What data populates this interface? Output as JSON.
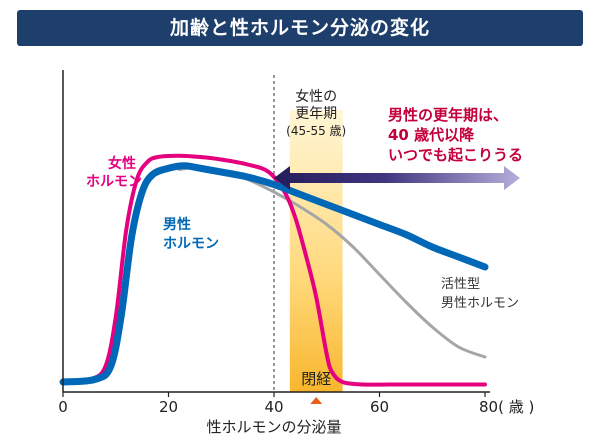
{
  "header": {
    "title": "加齢と性ホルモン分泌の変化"
  },
  "chart_data": {
    "type": "line",
    "xlabel": "性ホルモンの分泌量",
    "x_unit": "歳",
    "xlim": [
      0,
      80
    ],
    "ylim": [
      0,
      100
    ],
    "xticks": [
      {
        "value": 0,
        "label": "0"
      },
      {
        "value": 20,
        "label": "20"
      },
      {
        "value": 40,
        "label": "40"
      },
      {
        "value": 60,
        "label": "60"
      },
      {
        "value": 80,
        "label": "80( 歳 )"
      }
    ],
    "series": [
      {
        "name": "女性ホルモン",
        "label_lines": [
          "女性",
          "ホルモン"
        ],
        "color": "#e4007f",
        "x": [
          0,
          5,
          8,
          10,
          12,
          14,
          16,
          18,
          22,
          26,
          30,
          35,
          39,
          42,
          44,
          46,
          48,
          50,
          51,
          53,
          57,
          62,
          70,
          80
        ],
        "y": [
          4,
          5,
          10,
          30,
          65,
          85,
          92,
          94,
          94.5,
          94,
          93,
          91,
          88,
          80,
          70,
          55,
          38,
          15,
          8,
          4,
          3,
          3,
          3,
          3
        ]
      },
      {
        "name": "男性ホルモン",
        "label_lines": [
          "男性",
          "ホルモン"
        ],
        "color": "#0068b7",
        "x": [
          0,
          6,
          9,
          11,
          13,
          15,
          17,
          20,
          23,
          26,
          30,
          35,
          40,
          45,
          50,
          55,
          60,
          65,
          70,
          75,
          80
        ],
        "y": [
          4,
          5,
          10,
          30,
          62,
          80,
          87,
          89.5,
          90.5,
          89.5,
          88,
          86,
          83,
          79,
          75,
          71,
          67,
          63,
          58,
          54,
          50
        ]
      },
      {
        "name": "活性型男性ホルモン",
        "label_lines": [
          "活性型",
          "男性ホルモン"
        ],
        "color": "#a6a6a6",
        "x": [
          22,
          26,
          30,
          35,
          40,
          45,
          50,
          55,
          60,
          65,
          70,
          75,
          80
        ],
        "y": [
          89,
          90,
          88.5,
          85,
          80,
          74,
          67,
          58,
          47,
          36,
          26,
          18,
          14
        ]
      }
    ],
    "annotations": {
      "menopause_band": {
        "x_range": [
          43,
          53
        ],
        "title_lines": [
          "女性の",
          "更年期",
          "(45-55 歳)"
        ],
        "label": "閉経",
        "marker_x": 48
      },
      "male_period": {
        "text_lines": [
          "男性の更年期は、",
          "40 歳代以降",
          "いつでも起こりうる"
        ],
        "color": "#c4003a",
        "arrow_from": 40,
        "arrow_to": 80
      },
      "vline_x": 40
    },
    "grid": false
  }
}
